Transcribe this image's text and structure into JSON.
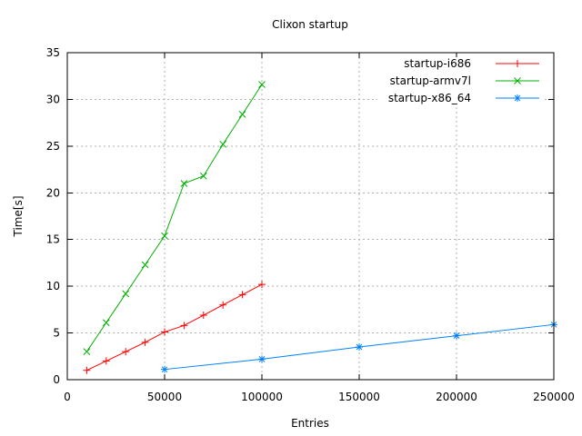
{
  "window": {
    "background": "#ffffff",
    "text_color": "#000000",
    "grid_color": "#b0b0b0"
  },
  "chart_data": {
    "type": "line",
    "title": "Clixon startup",
    "xlabel": "Entries",
    "ylabel": "Time[s]",
    "xlim": [
      0,
      250000
    ],
    "ylim": [
      0,
      35
    ],
    "x_ticks": [
      0,
      50000,
      100000,
      150000,
      200000,
      250000
    ],
    "y_ticks": [
      0,
      5,
      10,
      15,
      20,
      25,
      30,
      35
    ],
    "grid": true,
    "legend_position": "top-right-inside",
    "series": [
      {
        "name": "startup-i686",
        "color": "#ff0000",
        "marker": "plus",
        "x": [
          10000,
          20000,
          30000,
          40000,
          50000,
          60000,
          70000,
          80000,
          90000,
          100000
        ],
        "y": [
          1.0,
          2.0,
          3.0,
          4.0,
          5.1,
          5.8,
          6.9,
          8.0,
          9.1,
          10.2
        ]
      },
      {
        "name": "startup-armv7l",
        "color": "#00b000",
        "marker": "cross",
        "x": [
          10000,
          20000,
          30000,
          40000,
          50000,
          60000,
          70000,
          80000,
          90000,
          100000
        ],
        "y": [
          3.0,
          6.1,
          9.2,
          12.3,
          15.4,
          21.0,
          21.8,
          25.2,
          28.4,
          31.6
        ]
      },
      {
        "name": "startup-x86_64",
        "color": "#0080ff",
        "marker": "asterisk",
        "x": [
          50000,
          100000,
          150000,
          200000,
          250000
        ],
        "y": [
          1.1,
          2.2,
          3.5,
          4.7,
          5.9
        ]
      }
    ]
  }
}
